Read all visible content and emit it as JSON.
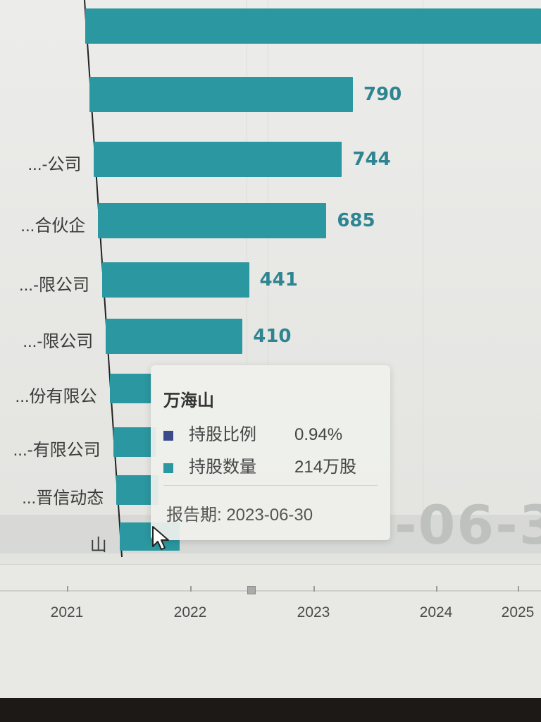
{
  "chart_data": {
    "type": "bar",
    "orientation": "horizontal",
    "categories": [
      "",
      "",
      "公司-...",
      "合伙企...",
      "限公司-...",
      "限公司-...",
      "份有限公...",
      "有限公司-...",
      "晋信动态...",
      "山"
    ],
    "values": [
      null,
      790,
      744,
      685,
      441,
      410,
      null,
      null,
      null,
      214
    ],
    "data_labels": [
      "",
      "790",
      "744",
      "685",
      "441",
      "410",
      "",
      "",
      "",
      ""
    ],
    "colors": {
      "bar": "#2b97a0",
      "label": "#2e8591"
    },
    "grid": false
  },
  "timeline": {
    "years": [
      "2021",
      "2022",
      "2023",
      "2024",
      "2025"
    ]
  },
  "watermark": "-06-3",
  "tooltip": {
    "name": "万海山",
    "rows": [
      {
        "swatch_color": "#3b4a8a",
        "label": "持股比例",
        "value": "0.94%"
      },
      {
        "swatch_color": "#2b97a0",
        "label": "持股数量",
        "value": "214万股"
      }
    ],
    "period": "报告期: 2023-06-30"
  }
}
